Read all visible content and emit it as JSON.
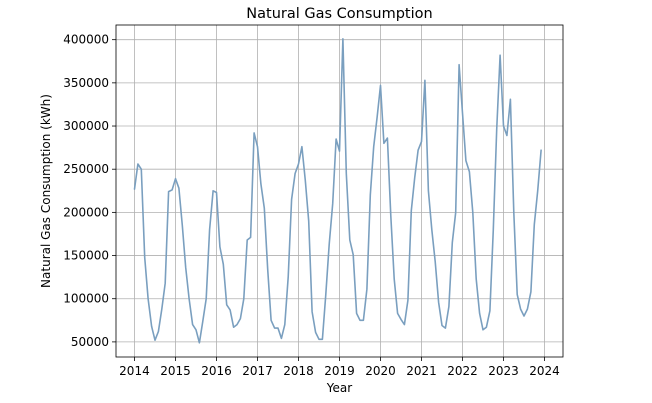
{
  "chart_data": {
    "type": "line",
    "title": "Natural Gas Consumption",
    "xlabel": "Year",
    "ylabel": "Natural Gas Consumption (kWh)",
    "grid": true,
    "xlim": [
      2013.55,
      2024.45
    ],
    "ylim": [
      32500,
      417000
    ],
    "x_ticks": [
      2014,
      2015,
      2016,
      2017,
      2018,
      2019,
      2020,
      2021,
      2022,
      2023,
      2024
    ],
    "x_tick_labels": [
      "2014",
      "2015",
      "2016",
      "2017",
      "2018",
      "2019",
      "2020",
      "2021",
      "2022",
      "2023",
      "2024"
    ],
    "y_ticks": [
      50000,
      100000,
      150000,
      200000,
      250000,
      300000,
      350000,
      400000
    ],
    "y_tick_labels": [
      "50000",
      "100000",
      "150000",
      "200000",
      "250000",
      "300000",
      "350000",
      "400000"
    ],
    "series": [
      {
        "color": "#7a9fbf",
        "x": [
          2014.0,
          2014.083,
          2014.167,
          2014.25,
          2014.333,
          2014.417,
          2014.5,
          2014.583,
          2014.667,
          2014.75,
          2014.833,
          2014.917,
          2015.0,
          2015.083,
          2015.167,
          2015.25,
          2015.333,
          2015.417,
          2015.5,
          2015.583,
          2015.667,
          2015.75,
          2015.833,
          2015.917,
          2016.0,
          2016.083,
          2016.167,
          2016.25,
          2016.333,
          2016.417,
          2016.5,
          2016.583,
          2016.667,
          2016.75,
          2016.833,
          2016.917,
          2017.0,
          2017.083,
          2017.167,
          2017.25,
          2017.333,
          2017.417,
          2017.5,
          2017.583,
          2017.667,
          2017.75,
          2017.833,
          2017.917,
          2018.0,
          2018.083,
          2018.167,
          2018.25,
          2018.333,
          2018.417,
          2018.5,
          2018.583,
          2018.667,
          2018.75,
          2018.833,
          2018.917,
          2019.0,
          2019.083,
          2019.167,
          2019.25,
          2019.333,
          2019.417,
          2019.5,
          2019.583,
          2019.667,
          2019.75,
          2019.833,
          2019.917,
          2020.0,
          2020.083,
          2020.167,
          2020.25,
          2020.333,
          2020.417,
          2020.5,
          2020.583,
          2020.667,
          2020.75,
          2020.833,
          2020.917,
          2021.0,
          2021.083,
          2021.167,
          2021.25,
          2021.333,
          2021.417,
          2021.5,
          2021.583,
          2021.667,
          2021.75,
          2021.833,
          2021.917,
          2022.0,
          2022.083,
          2022.167,
          2022.25,
          2022.333,
          2022.417,
          2022.5,
          2022.583,
          2022.667,
          2022.75,
          2022.833,
          2022.917,
          2023.0,
          2023.083,
          2023.167,
          2023.25,
          2023.333,
          2023.417,
          2023.5,
          2023.583,
          2023.667,
          2023.75,
          2023.833,
          2023.917
        ],
        "values": [
          227000,
          256000,
          250000,
          148000,
          100000,
          68000,
          52000,
          62000,
          88000,
          118000,
          224000,
          226000,
          239000,
          228000,
          185000,
          136000,
          100000,
          70000,
          64000,
          49000,
          74000,
          100000,
          180000,
          225000,
          223000,
          160000,
          140000,
          93000,
          87000,
          67000,
          70000,
          77000,
          100000,
          168000,
          171000,
          292000,
          276000,
          233000,
          205000,
          134000,
          75000,
          66000,
          66000,
          54000,
          70000,
          125000,
          215000,
          245000,
          256000,
          276000,
          237000,
          190000,
          85000,
          61000,
          53000,
          53000,
          105000,
          163000,
          210000,
          285000,
          271000,
          401000,
          245000,
          168000,
          151000,
          83000,
          75000,
          75000,
          111000,
          220000,
          276000,
          310000,
          347000,
          280000,
          286000,
          196000,
          123000,
          83000,
          76000,
          70000,
          98000,
          202000,
          240000,
          272000,
          282000,
          353000,
          225000,
          180000,
          143000,
          96000,
          69000,
          66000,
          91000,
          165000,
          200000,
          371000,
          315000,
          260000,
          247000,
          200000,
          123000,
          83000,
          64000,
          67000,
          86000,
          180000,
          296000,
          382000,
          300000,
          289000,
          331000,
          200000,
          105000,
          88000,
          80000,
          88000,
          108000,
          186000,
          225000,
          272000
        ]
      }
    ]
  }
}
